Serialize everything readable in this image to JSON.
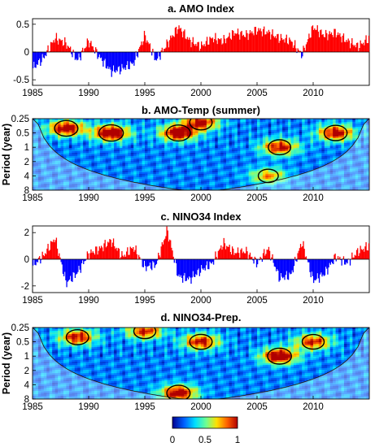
{
  "figure": {
    "panels": [
      "a. AMO Index",
      "b. AMO-Temp (summer)",
      "c. NINO34 Index",
      "d. NINO34-Prep."
    ],
    "colorbar": {
      "ticks": [
        "0",
        "0.5",
        "1"
      ],
      "colors": [
        "#00008f",
        "#0060ff",
        "#00e0ff",
        "#70ff90",
        "#ffe000",
        "#ff6000",
        "#b00000"
      ]
    }
  },
  "chart_data": [
    {
      "type": "bar",
      "title": "a. AMO Index",
      "xlim": [
        1985,
        2015
      ],
      "ylim": [
        -0.6,
        0.6
      ],
      "xticks": [
        "1985",
        "1990",
        "1995",
        "2000",
        "2005",
        "2010"
      ],
      "yticks": [
        "-0.5",
        "0",
        "0.5"
      ],
      "colors": {
        "positive": "#ff0000",
        "negative": "#0000ff"
      },
      "x": [
        1985,
        1986,
        1987,
        1988,
        1989,
        1990,
        1991,
        1992,
        1993,
        1994,
        1995,
        1996,
        1997,
        1998,
        1999,
        2000,
        2001,
        2002,
        2003,
        2004,
        2005,
        2006,
        2007,
        2008,
        2009,
        2010,
        2011,
        2012,
        2013,
        2014,
        2015
      ],
      "values": [
        -0.3,
        -0.1,
        0.25,
        0.15,
        -0.15,
        0.2,
        -0.1,
        -0.35,
        -0.3,
        -0.2,
        0.3,
        -0.15,
        0.15,
        0.45,
        0.2,
        0.1,
        0.25,
        0.2,
        0.35,
        0.3,
        0.4,
        0.35,
        0.25,
        0.2,
        -0.05,
        0.45,
        0.3,
        0.35,
        0.2,
        0.1,
        0.25
      ]
    },
    {
      "type": "heatmap",
      "title": "b. AMO-Temp (summer)",
      "ylabel": "Period (year)",
      "xlim": [
        1985,
        2015
      ],
      "xticks": [
        "1985",
        "1990",
        "1995",
        "2000",
        "2005",
        "2010"
      ],
      "yticks": [
        "0.25",
        "0.5",
        "1",
        "2",
        "4",
        "8"
      ],
      "ylim": [
        0.25,
        8
      ],
      "yscale": "log2",
      "colorscale": [
        0,
        1
      ],
      "hot_spots": [
        {
          "x": 1988,
          "period": 0.4,
          "value": 0.9
        },
        {
          "x": 1992,
          "period": 0.5,
          "value": 1.0
        },
        {
          "x": 1998,
          "period": 0.5,
          "value": 0.95
        },
        {
          "x": 2000,
          "period": 0.3,
          "value": 0.8
        },
        {
          "x": 2007,
          "period": 1.0,
          "value": 0.8
        },
        {
          "x": 2012,
          "period": 0.5,
          "value": 0.85
        },
        {
          "x": 2006,
          "period": 4,
          "value": 0.55
        }
      ]
    },
    {
      "type": "bar",
      "title": "c. NINO34 Index",
      "xlim": [
        1985,
        2015
      ],
      "ylim": [
        -2.5,
        2.5
      ],
      "xticks": [
        "1985",
        "1990",
        "1995",
        "2000",
        "2005",
        "2010"
      ],
      "yticks": [
        "-2",
        "0",
        "2"
      ],
      "colors": {
        "positive": "#ff0000",
        "negative": "#0000ff"
      },
      "x": [
        1985,
        1986,
        1987,
        1988,
        1989,
        1990,
        1991,
        1992,
        1993,
        1994,
        1995,
        1996,
        1997,
        1998,
        1999,
        2000,
        2001,
        2002,
        2003,
        2004,
        2005,
        2006,
        2007,
        2008,
        2009,
        2010,
        2011,
        2012,
        2013,
        2014,
        2015
      ],
      "values": [
        -0.5,
        0.3,
        1.6,
        -1.8,
        -1.0,
        0.4,
        0.8,
        1.4,
        0.2,
        0.9,
        -0.6,
        -0.4,
        2.2,
        -1.3,
        -1.5,
        -0.8,
        -0.3,
        1.2,
        0.5,
        0.6,
        -0.3,
        0.8,
        -1.4,
        -1.2,
        1.3,
        -1.6,
        -1.1,
        0.2,
        -0.3,
        0.6,
        1.0
      ]
    },
    {
      "type": "heatmap",
      "title": "d. NINO34-Prep.",
      "ylabel": "Period (year)",
      "xlim": [
        1985,
        2015
      ],
      "xticks": [
        "1985",
        "1990",
        "1995",
        "2000",
        "2005",
        "2010"
      ],
      "yticks": [
        "0.25",
        "0.5",
        "1",
        "2",
        "4",
        "8"
      ],
      "ylim": [
        0.25,
        8
      ],
      "yscale": "log2",
      "colorscale": [
        0,
        1
      ],
      "hot_spots": [
        {
          "x": 1989,
          "period": 0.4,
          "value": 0.8
        },
        {
          "x": 1995,
          "period": 0.3,
          "value": 0.75
        },
        {
          "x": 2000,
          "period": 0.5,
          "value": 0.8
        },
        {
          "x": 2007,
          "period": 1.0,
          "value": 0.95
        },
        {
          "x": 2010,
          "period": 0.5,
          "value": 0.75
        },
        {
          "x": 1998,
          "period": 6,
          "value": 0.9
        }
      ]
    }
  ]
}
